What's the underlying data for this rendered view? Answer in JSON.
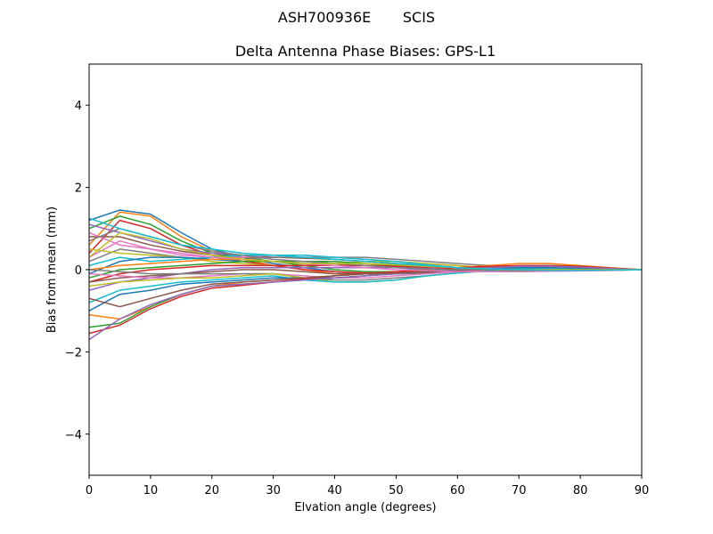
{
  "figure": {
    "suptitle_antenna": "ASH700936E",
    "suptitle_radome": "SCIS"
  },
  "chart_data": {
    "type": "line",
    "title": "Delta Antenna Phase Biases: GPS-L1",
    "xlabel": "Elvation angle (degrees)",
    "ylabel": "Bias from mean (mm)",
    "xlim": [
      0,
      90
    ],
    "ylim": [
      -5,
      5
    ],
    "xticks": [
      0,
      10,
      20,
      30,
      40,
      50,
      60,
      70,
      80,
      90
    ],
    "yticks": [
      -4,
      -2,
      0,
      2,
      4
    ],
    "ytick_labels": [
      "−4",
      "−2",
      "0",
      "2",
      "4"
    ],
    "grid": false,
    "legend": "none",
    "colors": [
      "#1f77b4",
      "#ff7f0e",
      "#2ca02c",
      "#d62728",
      "#9467bd",
      "#8c564b",
      "#e377c2",
      "#7f7f7f",
      "#bcbd22",
      "#17becf"
    ],
    "x": [
      0,
      5,
      10,
      15,
      20,
      25,
      30,
      35,
      40,
      45,
      50,
      55,
      60,
      65,
      70,
      75,
      80,
      85,
      90
    ],
    "series": [
      {
        "values": [
          1.2,
          1.45,
          1.35,
          0.9,
          0.5,
          0.3,
          0.15,
          0.05,
          -0.05,
          -0.1,
          -0.1,
          -0.08,
          -0.05,
          -0.02,
          0.02,
          0.04,
          0.04,
          0.02,
          0
        ]
      },
      {
        "values": [
          0.6,
          1.4,
          1.3,
          0.8,
          0.45,
          0.25,
          0.1,
          0.0,
          -0.1,
          -0.1,
          -0.08,
          -0.05,
          -0.03,
          0.0,
          0.03,
          0.05,
          0.04,
          0.02,
          0
        ]
      },
      {
        "values": [
          1.0,
          1.3,
          1.1,
          0.7,
          0.4,
          0.3,
          0.2,
          0.1,
          0.0,
          -0.05,
          -0.05,
          -0.05,
          -0.03,
          0.0,
          0.02,
          0.03,
          0.03,
          0.02,
          0
        ]
      },
      {
        "values": [
          0.4,
          1.2,
          1.0,
          0.6,
          0.35,
          0.2,
          0.1,
          0.0,
          -0.05,
          -0.08,
          -0.06,
          -0.04,
          -0.02,
          0.0,
          0.02,
          0.03,
          0.03,
          0.01,
          0
        ]
      },
      {
        "values": [
          1.1,
          0.9,
          0.7,
          0.5,
          0.4,
          0.35,
          0.3,
          0.3,
          0.25,
          0.2,
          0.15,
          0.1,
          0.05,
          0.05,
          0.04,
          0.04,
          0.03,
          0.02,
          0
        ]
      },
      {
        "values": [
          0.8,
          0.8,
          0.6,
          0.45,
          0.35,
          0.3,
          0.3,
          0.28,
          0.25,
          0.2,
          0.15,
          0.1,
          0.05,
          0.02,
          0.0,
          0.0,
          0.0,
          0.0,
          0
        ]
      },
      {
        "values": [
          0.3,
          0.7,
          0.5,
          0.35,
          0.3,
          0.3,
          0.35,
          0.35,
          0.3,
          0.25,
          0.2,
          0.15,
          0.1,
          0.05,
          0.02,
          0.0,
          0.0,
          0.0,
          0
        ]
      },
      {
        "values": [
          0.2,
          0.5,
          0.4,
          0.3,
          0.25,
          0.25,
          0.3,
          0.3,
          0.3,
          0.3,
          0.25,
          0.2,
          0.15,
          0.1,
          0.05,
          0.02,
          0.0,
          0.0,
          0
        ]
      },
      {
        "values": [
          0.5,
          0.4,
          0.35,
          0.3,
          0.2,
          0.15,
          0.1,
          0.1,
          0.15,
          0.2,
          0.2,
          0.15,
          0.1,
          0.05,
          0.02,
          0.0,
          -0.02,
          -0.02,
          0
        ]
      },
      {
        "values": [
          0.1,
          0.3,
          0.2,
          0.25,
          0.3,
          0.35,
          0.35,
          0.35,
          0.3,
          0.25,
          0.2,
          0.12,
          0.05,
          0.0,
          -0.02,
          -0.03,
          -0.02,
          -0.01,
          0
        ]
      },
      {
        "values": [
          -0.1,
          0.2,
          0.3,
          0.3,
          0.25,
          0.2,
          0.2,
          0.2,
          0.15,
          0.1,
          0.05,
          0.0,
          -0.05,
          -0.05,
          -0.05,
          -0.03,
          -0.02,
          -0.01,
          0
        ]
      },
      {
        "values": [
          0.0,
          0.1,
          0.15,
          0.2,
          0.25,
          0.25,
          0.2,
          0.15,
          0.1,
          0.1,
          0.1,
          0.08,
          0.05,
          0.02,
          0.0,
          0.0,
          0.0,
          0.0,
          0
        ]
      },
      {
        "values": [
          -0.2,
          0.0,
          0.05,
          0.1,
          0.15,
          0.2,
          0.2,
          0.2,
          0.2,
          0.15,
          0.1,
          0.05,
          0.0,
          -0.03,
          -0.04,
          -0.03,
          -0.02,
          -0.01,
          0
        ]
      },
      {
        "values": [
          -0.3,
          -0.1,
          0.0,
          0.05,
          0.1,
          0.1,
          0.1,
          0.1,
          0.1,
          0.1,
          0.08,
          0.05,
          0.02,
          0.0,
          0.0,
          0.0,
          0.0,
          0.0,
          0
        ]
      },
      {
        "values": [
          -0.5,
          -0.3,
          -0.2,
          -0.1,
          0.0,
          0.05,
          0.05,
          0.05,
          0.05,
          0.05,
          0.05,
          0.03,
          0.02,
          0.0,
          0.0,
          0.0,
          0.0,
          0.0,
          0
        ]
      },
      {
        "values": [
          -0.3,
          -0.2,
          -0.15,
          -0.1,
          -0.05,
          0.0,
          0.0,
          -0.05,
          -0.1,
          -0.1,
          -0.1,
          -0.08,
          -0.05,
          -0.02,
          0.0,
          0.02,
          0.02,
          0.01,
          0
        ]
      },
      {
        "values": [
          -0.1,
          -0.15,
          -0.2,
          -0.2,
          -0.15,
          -0.1,
          -0.1,
          -0.15,
          -0.2,
          -0.2,
          -0.15,
          -0.1,
          -0.05,
          -0.02,
          0.0,
          0.02,
          0.02,
          0.01,
          0
        ]
      },
      {
        "values": [
          0.0,
          -0.05,
          -0.1,
          -0.1,
          -0.1,
          -0.1,
          -0.1,
          -0.2,
          -0.25,
          -0.25,
          -0.2,
          -0.15,
          -0.08,
          -0.03,
          0.02,
          0.04,
          0.03,
          0.02,
          0
        ]
      },
      {
        "values": [
          -0.4,
          -0.3,
          -0.25,
          -0.2,
          -0.2,
          -0.15,
          -0.1,
          -0.2,
          -0.3,
          -0.3,
          -0.25,
          -0.15,
          -0.08,
          -0.02,
          0.03,
          0.05,
          0.04,
          0.02,
          0
        ]
      },
      {
        "values": [
          -0.8,
          -0.5,
          -0.4,
          -0.3,
          -0.25,
          -0.2,
          -0.15,
          -0.25,
          -0.3,
          -0.3,
          -0.25,
          -0.15,
          -0.08,
          -0.03,
          0.02,
          0.03,
          0.03,
          0.02,
          0
        ]
      },
      {
        "values": [
          -1.0,
          -0.6,
          -0.5,
          -0.35,
          -0.3,
          -0.25,
          -0.2,
          -0.2,
          -0.2,
          -0.15,
          -0.1,
          -0.05,
          0.0,
          0.03,
          0.05,
          0.05,
          0.04,
          0.02,
          0
        ]
      },
      {
        "values": [
          -1.1,
          -1.2,
          -0.9,
          -0.6,
          -0.4,
          -0.3,
          -0.25,
          -0.2,
          -0.15,
          -0.1,
          -0.05,
          0.0,
          0.05,
          0.1,
          0.15,
          0.15,
          0.1,
          0.05,
          0
        ]
      },
      {
        "values": [
          -1.4,
          -1.3,
          -0.9,
          -0.6,
          -0.4,
          -0.35,
          -0.3,
          -0.25,
          -0.2,
          -0.15,
          -0.1,
          -0.05,
          0.0,
          0.05,
          0.1,
          0.1,
          0.08,
          0.04,
          0
        ]
      },
      {
        "values": [
          -1.55,
          -1.35,
          -0.95,
          -0.65,
          -0.45,
          -0.38,
          -0.3,
          -0.22,
          -0.15,
          -0.1,
          -0.05,
          0.0,
          0.05,
          0.08,
          0.1,
          0.1,
          0.08,
          0.04,
          0
        ]
      },
      {
        "values": [
          -1.7,
          -1.2,
          -0.85,
          -0.6,
          -0.4,
          -0.35,
          -0.3,
          -0.25,
          -0.2,
          -0.15,
          -0.1,
          -0.05,
          0.0,
          0.05,
          0.08,
          0.08,
          0.06,
          0.03,
          0
        ]
      },
      {
        "values": [
          -0.7,
          -0.9,
          -0.7,
          -0.5,
          -0.35,
          -0.3,
          -0.25,
          -0.2,
          -0.15,
          -0.1,
          -0.08,
          -0.05,
          -0.02,
          0.0,
          0.0,
          0.0,
          0.0,
          0.0,
          0
        ]
      },
      {
        "values": [
          0.9,
          0.6,
          0.5,
          0.4,
          0.3,
          0.25,
          0.2,
          0.15,
          0.1,
          0.05,
          0.0,
          -0.02,
          -0.05,
          -0.05,
          -0.05,
          -0.04,
          -0.03,
          -0.02,
          0
        ]
      },
      {
        "values": [
          0.7,
          1.0,
          0.8,
          0.6,
          0.45,
          0.35,
          0.25,
          0.2,
          0.15,
          0.1,
          0.05,
          0.02,
          0.0,
          0.0,
          0.0,
          0.0,
          0.0,
          0.0,
          0
        ]
      },
      {
        "values": [
          0.3,
          0.9,
          0.75,
          0.5,
          0.35,
          0.25,
          0.2,
          0.15,
          0.15,
          0.15,
          0.12,
          0.08,
          0.05,
          0.02,
          0.0,
          0.0,
          0.0,
          0.0,
          0
        ]
      },
      {
        "values": [
          1.25,
          1.0,
          0.8,
          0.6,
          0.5,
          0.4,
          0.35,
          0.3,
          0.25,
          0.2,
          0.15,
          0.1,
          0.05,
          0.02,
          0.0,
          -0.02,
          -0.02,
          -0.01,
          0
        ]
      }
    ]
  }
}
